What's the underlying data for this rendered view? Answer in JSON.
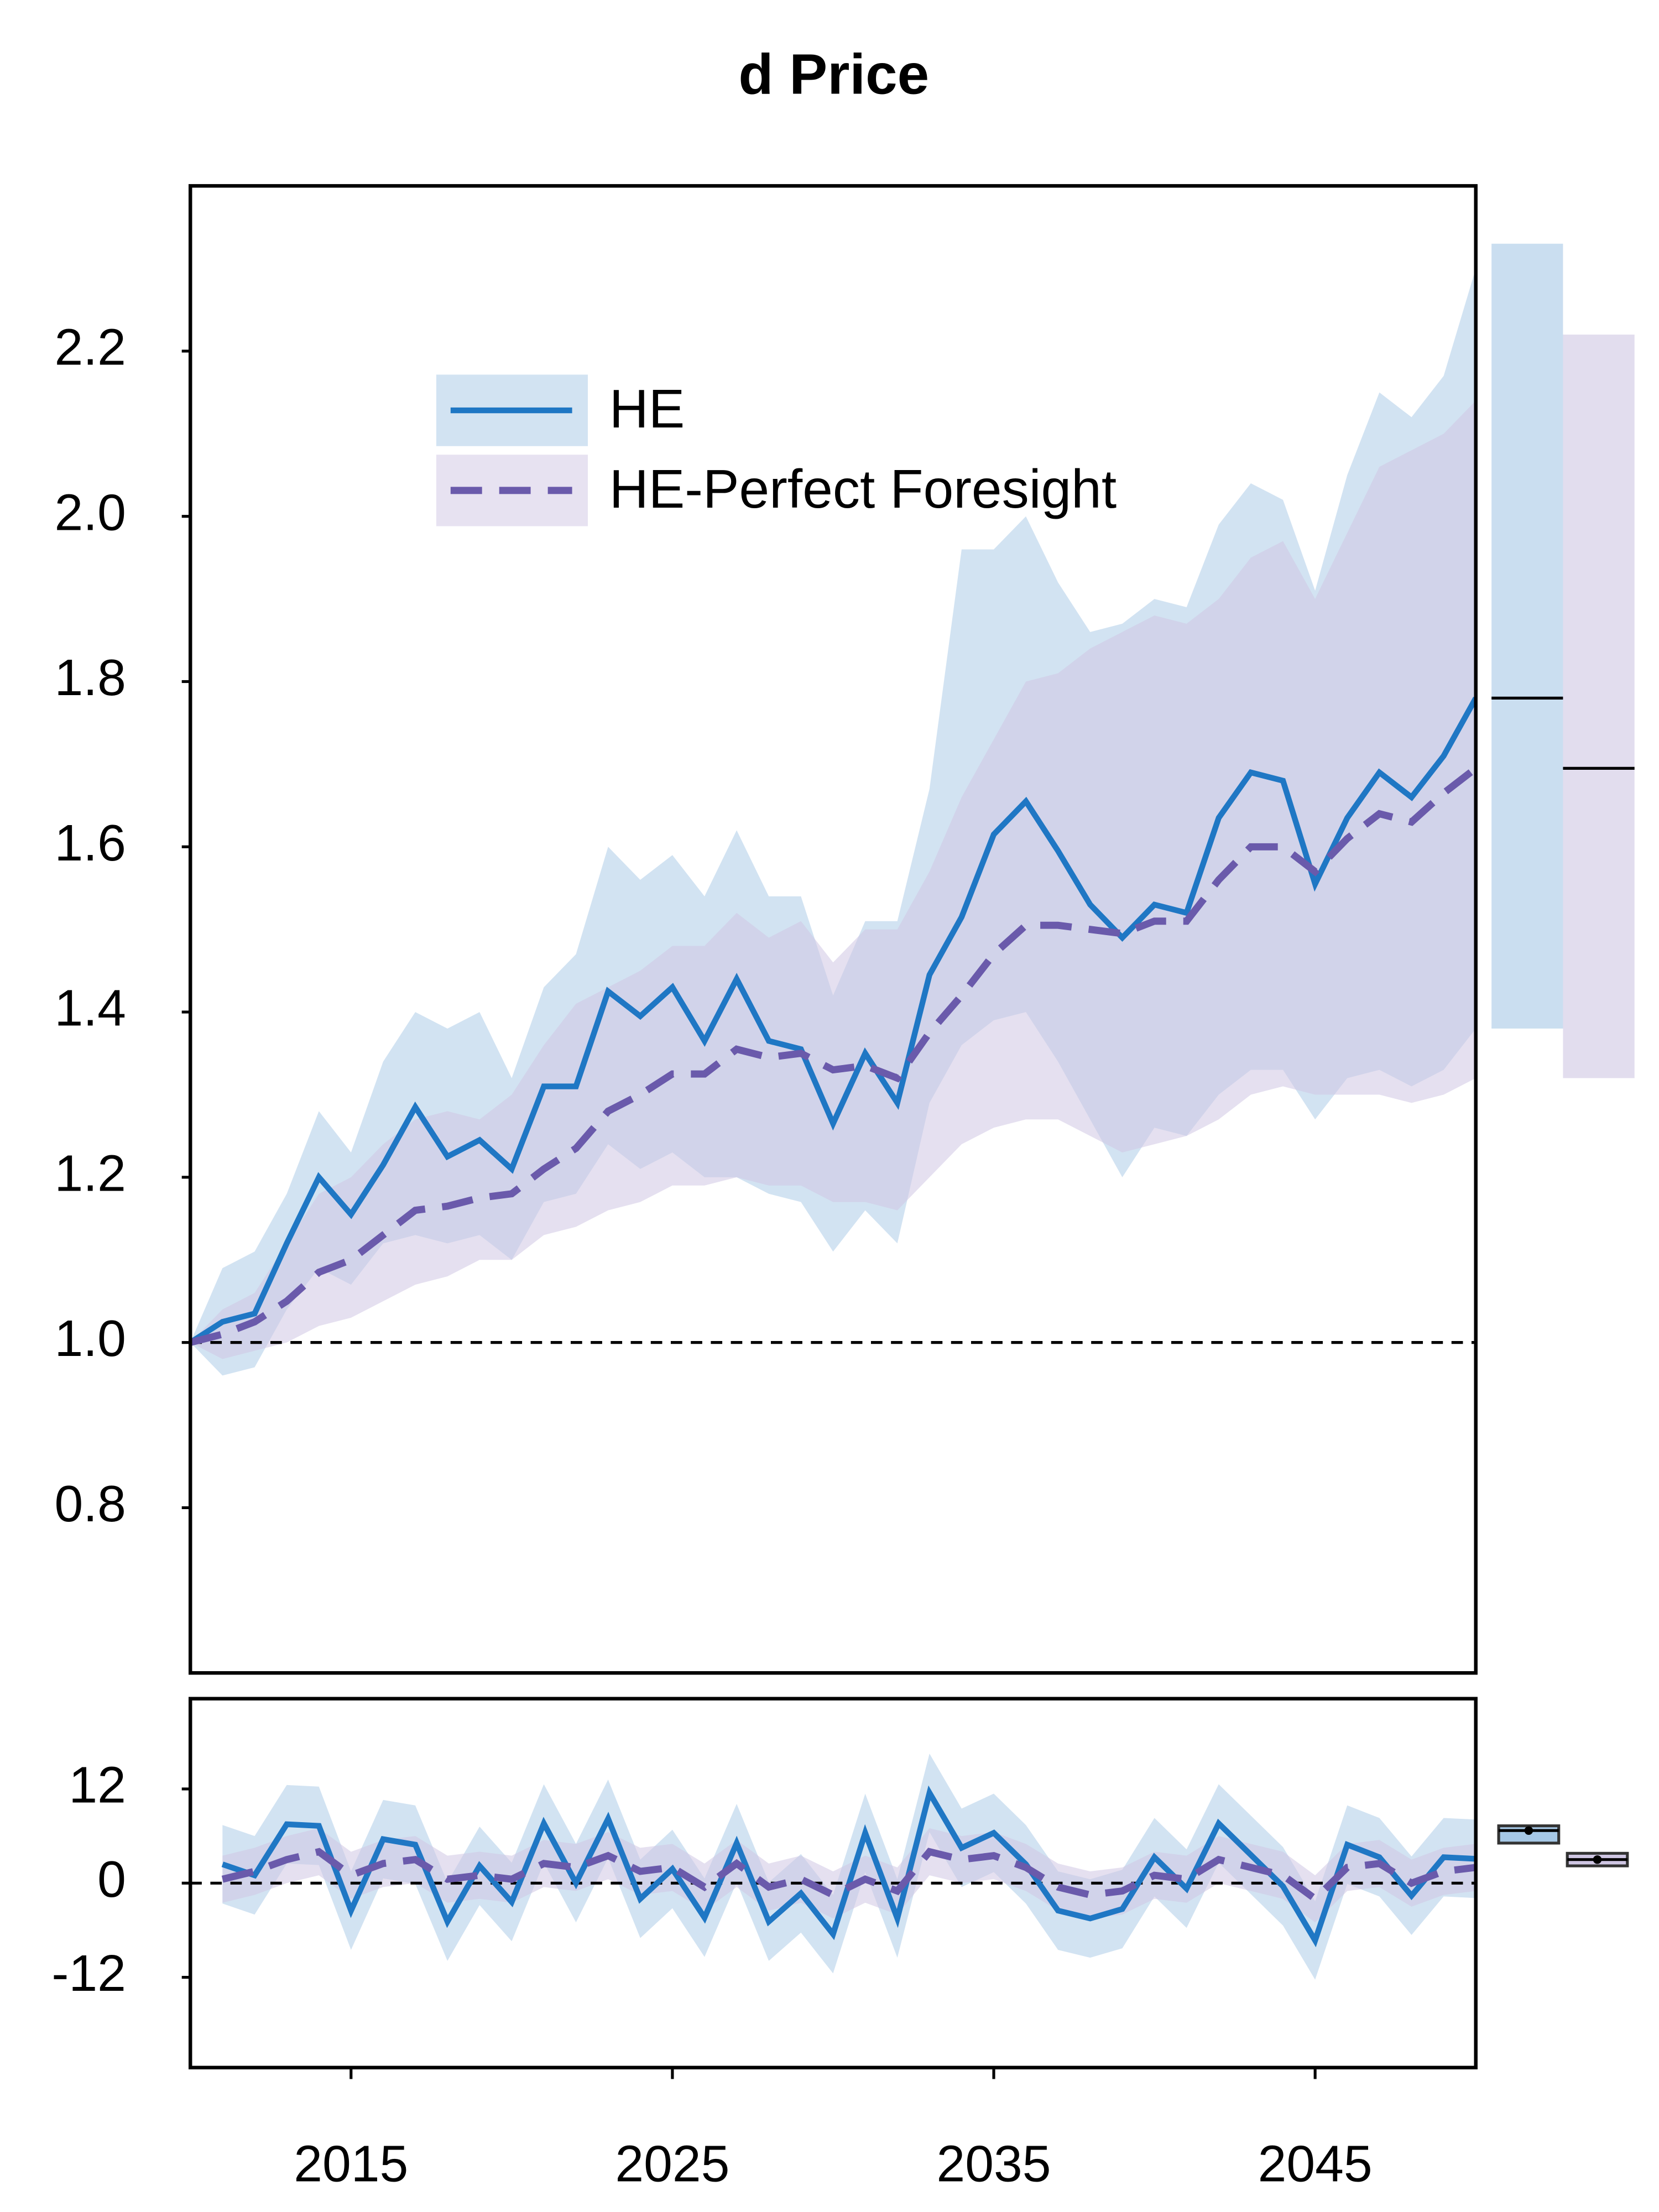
{
  "chart_data": [
    {
      "type": "line",
      "title": "d Price",
      "x": [
        2010,
        2011,
        2012,
        2013,
        2014,
        2015,
        2016,
        2017,
        2018,
        2019,
        2020,
        2021,
        2022,
        2023,
        2024,
        2025,
        2026,
        2027,
        2028,
        2029,
        2030,
        2031,
        2032,
        2033,
        2034,
        2035,
        2036,
        2037,
        2038,
        2039,
        2040,
        2041,
        2042,
        2043,
        2044,
        2045,
        2046,
        2047,
        2048,
        2049,
        2050
      ],
      "series": [
        {
          "name": "HE",
          "color": "#1f77c4",
          "band_color": "#a6c8e6",
          "style": "solid",
          "values": [
            1.0,
            1.025,
            1.035,
            1.12,
            1.2,
            1.155,
            1.215,
            1.285,
            1.225,
            1.245,
            1.21,
            1.31,
            1.31,
            1.425,
            1.395,
            1.43,
            1.365,
            1.44,
            1.365,
            1.355,
            1.265,
            1.35,
            1.29,
            1.445,
            1.515,
            1.615,
            1.655,
            1.595,
            1.53,
            1.49,
            1.53,
            1.52,
            1.635,
            1.69,
            1.68,
            1.555,
            1.635,
            1.69,
            1.66,
            1.71,
            1.78
          ],
          "lower": [
            1.0,
            0.96,
            0.97,
            1.04,
            1.09,
            1.07,
            1.12,
            1.13,
            1.12,
            1.13,
            1.1,
            1.17,
            1.18,
            1.24,
            1.21,
            1.23,
            1.2,
            1.2,
            1.18,
            1.17,
            1.11,
            1.16,
            1.12,
            1.29,
            1.36,
            1.39,
            1.4,
            1.34,
            1.27,
            1.2,
            1.26,
            1.25,
            1.3,
            1.33,
            1.33,
            1.27,
            1.32,
            1.33,
            1.31,
            1.33,
            1.38
          ],
          "upper": [
            1.0,
            1.09,
            1.11,
            1.18,
            1.28,
            1.23,
            1.34,
            1.4,
            1.38,
            1.4,
            1.32,
            1.43,
            1.47,
            1.6,
            1.56,
            1.59,
            1.54,
            1.62,
            1.54,
            1.54,
            1.42,
            1.51,
            1.51,
            1.67,
            1.96,
            1.96,
            2.0,
            1.92,
            1.86,
            1.87,
            1.9,
            1.89,
            1.99,
            2.04,
            2.02,
            1.91,
            2.05,
            2.15,
            2.12,
            2.17,
            2.3
          ],
          "distribution": {
            "min": 1.38,
            "max": 2.33,
            "median": 1.78
          }
        },
        {
          "name": "HE-Perfect Foresight",
          "color": "#6a5aab",
          "band_color": "#cfc6e3",
          "style": "dashed",
          "values": [
            1.0,
            1.01,
            1.025,
            1.05,
            1.085,
            1.1,
            1.13,
            1.16,
            1.165,
            1.175,
            1.18,
            1.21,
            1.235,
            1.28,
            1.3,
            1.325,
            1.325,
            1.355,
            1.345,
            1.35,
            1.33,
            1.335,
            1.32,
            1.375,
            1.42,
            1.47,
            1.505,
            1.505,
            1.5,
            1.495,
            1.51,
            1.51,
            1.56,
            1.6,
            1.6,
            1.57,
            1.61,
            1.64,
            1.63,
            1.665,
            1.695
          ],
          "lower": [
            1.0,
            0.98,
            0.99,
            1.0,
            1.02,
            1.03,
            1.05,
            1.07,
            1.08,
            1.1,
            1.1,
            1.13,
            1.14,
            1.16,
            1.17,
            1.19,
            1.19,
            1.2,
            1.19,
            1.19,
            1.17,
            1.17,
            1.16,
            1.2,
            1.24,
            1.26,
            1.27,
            1.27,
            1.25,
            1.23,
            1.24,
            1.25,
            1.27,
            1.3,
            1.31,
            1.3,
            1.3,
            1.3,
            1.29,
            1.3,
            1.32
          ],
          "upper": [
            1.0,
            1.04,
            1.06,
            1.12,
            1.18,
            1.2,
            1.24,
            1.27,
            1.28,
            1.27,
            1.3,
            1.36,
            1.41,
            1.43,
            1.45,
            1.48,
            1.48,
            1.52,
            1.49,
            1.51,
            1.46,
            1.5,
            1.5,
            1.57,
            1.66,
            1.73,
            1.8,
            1.81,
            1.84,
            1.86,
            1.88,
            1.87,
            1.9,
            1.95,
            1.97,
            1.9,
            1.98,
            2.06,
            2.08,
            2.1,
            2.14
          ],
          "distribution": {
            "min": 1.32,
            "max": 2.22,
            "median": 1.695
          }
        }
      ],
      "xlim": [
        2010,
        2050
      ],
      "ylim": [
        0.6,
        2.4
      ],
      "yticks": [
        0.8,
        {
          "value": 1.0,
          "label": "1.0"
        },
        1.2,
        1.4,
        1.6,
        1.8,
        {
          "value": 2.0,
          "label": "2.0"
        },
        2.2
      ],
      "hline": 1,
      "legend": "upper left"
    },
    {
      "type": "line",
      "x": [
        2011,
        2012,
        2013,
        2014,
        2015,
        2016,
        2017,
        2018,
        2019,
        2020,
        2021,
        2022,
        2023,
        2024,
        2025,
        2026,
        2027,
        2028,
        2029,
        2030,
        2031,
        2032,
        2033,
        2034,
        2035,
        2036,
        2037,
        2038,
        2039,
        2040,
        2041,
        2042,
        2043,
        2044,
        2045,
        2046,
        2047,
        2048,
        2049,
        2050
      ],
      "series": [
        {
          "name": "HE",
          "color": "#1f77c4",
          "band_color": "#a6c8e6",
          "style": "solid",
          "values": [
            2.4,
            1,
            7.5,
            7.3,
            -3.5,
            5.6,
            4.9,
            -4.9,
            2.2,
            -2.4,
            7.6,
            0,
            8.2,
            -2,
            1.8,
            -4.4,
            5.1,
            -4.9,
            -1.3,
            -6.5,
            6.4,
            -4.5,
            11.5,
            4.5,
            6.4,
            2.4,
            -3.5,
            -4.5,
            -3.3,
            3.3,
            -0.7,
            7.6,
            3.6,
            -0.4,
            -7.3,
            4.9,
            3.3,
            -1.6,
            3.3,
            3.1
          ],
          "lower": [
            -2.6,
            -4,
            2.5,
            2.3,
            -8.5,
            0.6,
            -0.1,
            -9.9,
            -2.8,
            -7.4,
            2.6,
            -5,
            3.2,
            -7,
            -3.2,
            -9.4,
            0.1,
            -9.9,
            -6.3,
            -11.5,
            1.4,
            -9.5,
            6.5,
            -0.5,
            1.4,
            -2.6,
            -8.5,
            -9.5,
            -8.3,
            -1.7,
            -5.7,
            2.6,
            -1.4,
            -5.4,
            -12.3,
            -0.1,
            -1.7,
            -6.6,
            -1.7,
            -1.9
          ],
          "upper": [
            7.4,
            6,
            12.5,
            12.3,
            1.5,
            10.6,
            9.9,
            0.1,
            7.2,
            2.6,
            12.6,
            5,
            13.2,
            3,
            6.8,
            0.6,
            10.1,
            0.1,
            3.7,
            -1.5,
            11.4,
            0.5,
            16.5,
            9.5,
            11.4,
            7.4,
            1.5,
            0.5,
            1.7,
            8.3,
            4.3,
            12.6,
            8.6,
            4.6,
            -2.3,
            9.9,
            8.3,
            3.4,
            8.3,
            8.1
          ],
          "box": {
            "q1": 5.1,
            "median": 6.7,
            "q3": 7.3
          }
        },
        {
          "name": "HE-Perfect Foresight",
          "color": "#6a5aab",
          "band_color": "#cfc6e3",
          "style": "dashed",
          "values": [
            0.5,
            1.5,
            3,
            4,
            1,
            2.5,
            3,
            0.5,
            1,
            0.5,
            2.5,
            2,
            3.5,
            1.5,
            2,
            -0.5,
            2.5,
            -0.5,
            0.5,
            -1.5,
            0.5,
            -1,
            4,
            3,
            3.5,
            2,
            -0.5,
            -1.5,
            -1,
            1,
            0.5,
            3,
            2,
            1,
            -2,
            2,
            2.5,
            0,
            1.5,
            2
          ],
          "lower": [
            -2.5,
            -1.5,
            0,
            1,
            -2,
            -0.5,
            0,
            -2.5,
            -2,
            -2.5,
            -0.5,
            -1,
            0.5,
            -1.5,
            -1,
            -3.5,
            -0.5,
            -3.5,
            -2.5,
            -4.5,
            -2.5,
            -4,
            1,
            0,
            0.5,
            -1,
            -3.5,
            -4.5,
            -4,
            -2,
            -2.5,
            0,
            -1,
            -2,
            -5,
            -1,
            -0.5,
            -3,
            -1.5,
            -1
          ],
          "upper": [
            3.5,
            4.5,
            6,
            7,
            4,
            5.5,
            6,
            3.5,
            4,
            3.5,
            5.5,
            5,
            6.5,
            4.5,
            5,
            2.5,
            5.5,
            2.5,
            3.5,
            1.5,
            3.5,
            2,
            7,
            6,
            6.5,
            5,
            2.5,
            1.5,
            2,
            4,
            3.5,
            6,
            5,
            4,
            1,
            5,
            5.5,
            3,
            4.5,
            5
          ],
          "box": {
            "q1": 2.2,
            "median": 3,
            "q3": 3.8
          }
        }
      ],
      "xlim": [
        2010,
        2050
      ],
      "ylim": [
        -23.5,
        23.5
      ],
      "yticks": [
        -12,
        0,
        12
      ],
      "xticks": [
        2015,
        2025,
        2035,
        2045
      ],
      "hline": 0
    }
  ]
}
